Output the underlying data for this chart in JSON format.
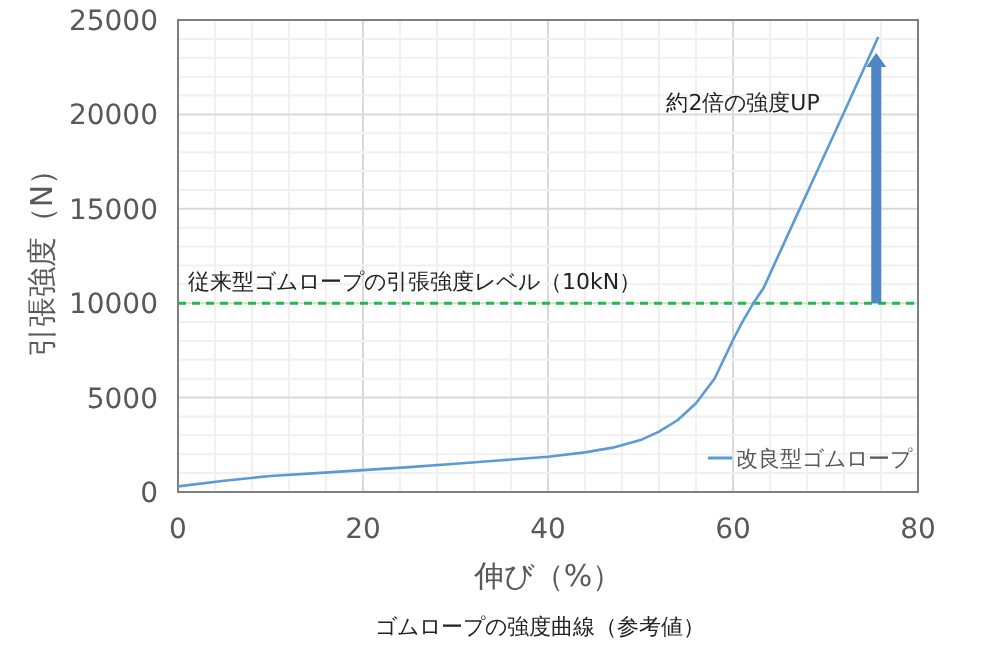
{
  "chart_data": {
    "type": "line",
    "xlabel": "伸び（%）",
    "ylabel": "引張強度（N）",
    "x": [
      0,
      5,
      10,
      15,
      20,
      25,
      30,
      35,
      40,
      44,
      47,
      50,
      52,
      54,
      56,
      58,
      60,
      61,
      62.2,
      63.3,
      66,
      69,
      72,
      75.7
    ],
    "series": [
      {
        "name": "改良型ゴムロープ",
        "color": "#5b9bd5",
        "values": [
          300,
          600,
          850,
          1000,
          1160,
          1320,
          1500,
          1680,
          1870,
          2100,
          2350,
          2750,
          3200,
          3800,
          4700,
          6000,
          8050,
          9000,
          10000,
          10800,
          13700,
          16900,
          20100,
          24100
        ]
      }
    ],
    "xlim": [
      0,
      80
    ],
    "xticks": [
      0,
      20,
      40,
      60,
      80
    ],
    "ylim": [
      0,
      25000
    ],
    "yticks": [
      0,
      5000,
      10000,
      15000,
      20000,
      25000
    ],
    "grid": true,
    "legend": "bottom right",
    "marker": "none",
    "line_style": "solid",
    "ref_lines": [
      {
        "axis": "y",
        "value": 10000,
        "label": "従来型ゴムロープの引張強度レベル（10kN）",
        "color": "#22bb44",
        "line_style": "dashed"
      }
    ],
    "annotations": [
      "約2倍の強度UP",
      "ゴムロープの強度曲線（参考値）"
    ]
  }
}
